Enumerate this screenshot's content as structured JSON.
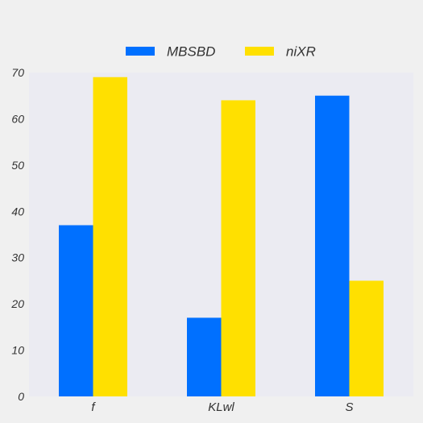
{
  "chart_data": {
    "type": "bar",
    "categories": [
      "f",
      "KLwl",
      "S"
    ],
    "series": [
      {
        "name": "MBSBD",
        "values": [
          37,
          17,
          65
        ],
        "color": "#0070ff"
      },
      {
        "name": "niXR",
        "values": [
          69,
          64,
          25
        ],
        "color": "#ffe000"
      }
    ],
    "title": "",
    "xlabel": "",
    "ylabel": "",
    "ylim": [
      0,
      70
    ],
    "yticks": [
      0,
      10,
      20,
      30,
      40,
      50,
      60,
      70
    ],
    "grid": false,
    "legend": "top-center",
    "plot_background": "#ebebf2"
  }
}
